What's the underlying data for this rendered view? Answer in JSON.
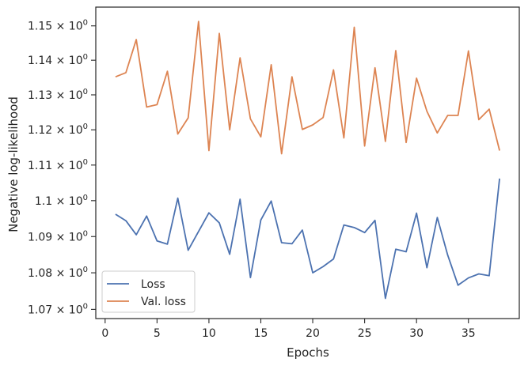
{
  "chart_data": {
    "type": "line",
    "xlabel": "Epochs",
    "ylabel": "Negative log-likelihood",
    "xlim": [
      -0.9,
      39.9
    ],
    "ylim": [
      1.0675,
      1.1555
    ],
    "yscale": "log",
    "grid": false,
    "legend_position": "bottom-left",
    "x_ticks": [
      0,
      5,
      10,
      15,
      20,
      25,
      30,
      35
    ],
    "x_tick_labels": [
      "0",
      "5",
      "10",
      "15",
      "20",
      "25",
      "30",
      "35"
    ],
    "y_ticks": [
      1.07,
      1.08,
      1.09,
      1.1,
      1.11,
      1.12,
      1.13,
      1.14,
      1.15
    ],
    "y_tick_mantissas": [
      "1.07",
      "1.08",
      "1.09",
      "1.1",
      "1.11",
      "1.12",
      "1.13",
      "1.14",
      "1.15"
    ],
    "y_tick_base": "10",
    "y_tick_exponent": "0",
    "x": [
      1,
      2,
      3,
      4,
      5,
      6,
      7,
      8,
      9,
      10,
      11,
      12,
      13,
      14,
      15,
      16,
      17,
      18,
      19,
      20,
      21,
      22,
      23,
      24,
      25,
      26,
      27,
      28,
      29,
      30,
      31,
      32,
      33,
      34,
      35,
      36,
      37,
      38
    ],
    "series": [
      {
        "name": "Loss",
        "color": "#4c72b0",
        "values": [
          1.0962,
          1.0944,
          1.0905,
          1.0957,
          1.0888,
          1.0879,
          1.1007,
          1.0862,
          1.0914,
          1.0966,
          1.0938,
          1.0851,
          1.1004,
          1.0787,
          1.0946,
          1.0999,
          1.0883,
          1.088,
          1.0918,
          1.08,
          1.0817,
          1.0838,
          1.0932,
          1.0925,
          1.0911,
          1.0945,
          1.073,
          1.0865,
          1.0858,
          1.0965,
          1.0814,
          1.0953,
          1.0849,
          1.0766,
          1.0786,
          1.0797,
          1.0792,
          1.1062
        ]
      },
      {
        "name": "Val. loss",
        "color": "#dd8452",
        "values": [
          1.1352,
          1.1364,
          1.146,
          1.1265,
          1.1272,
          1.1368,
          1.1188,
          1.1234,
          1.1513,
          1.1141,
          1.1478,
          1.12,
          1.1407,
          1.1231,
          1.118,
          1.1387,
          1.1132,
          1.1352,
          1.1201,
          1.1214,
          1.1235,
          1.1372,
          1.1177,
          1.1496,
          1.1154,
          1.1378,
          1.1167,
          1.1428,
          1.1164,
          1.1348,
          1.1253,
          1.1191,
          1.1241,
          1.1241,
          1.1427,
          1.1229,
          1.1259,
          1.1141
        ]
      }
    ]
  }
}
